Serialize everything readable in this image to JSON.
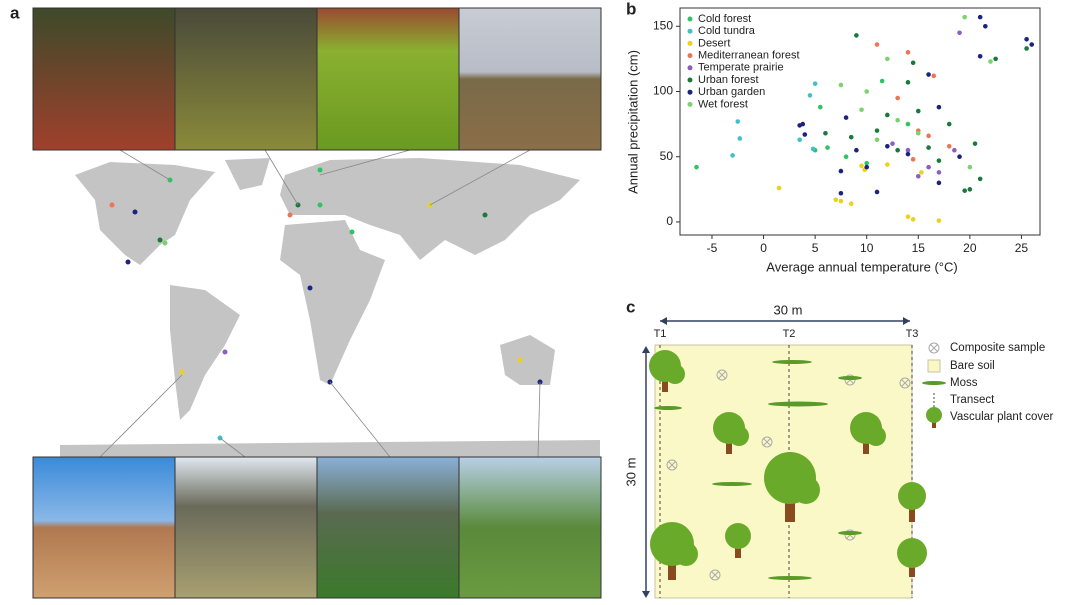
{
  "panel_labels": [
    "a",
    "b",
    "c"
  ],
  "chart_data": {
    "type": "scatter",
    "x_label": "Average annual temperature (°C)",
    "y_label": "Annual precipitation (cm)",
    "xlim": [
      -8.1,
      26.8
    ],
    "ylim": [
      -10,
      164
    ],
    "xticks": [
      -5,
      0,
      5,
      10,
      15,
      20,
      25
    ],
    "yticks": [
      0,
      50,
      100,
      150
    ],
    "legend": "upper left",
    "series": [
      {
        "name": "Cold forest",
        "color": "#2fc463",
        "x": [
          -6.5,
          5,
          5.5,
          8,
          10,
          14,
          6.2,
          11.5
        ],
        "values": [
          42,
          55,
          88,
          50,
          45,
          75,
          57,
          108
        ]
      },
      {
        "name": "Cold tundra",
        "color": "#3fc1c9",
        "x": [
          -3,
          -2.5,
          -2.3,
          4.5,
          5,
          4.8,
          3.5
        ],
        "values": [
          51,
          77,
          64,
          97,
          106,
          56,
          63
        ]
      },
      {
        "name": "Desert",
        "color": "#ecd21c",
        "x": [
          1.5,
          7,
          7.5,
          8.5,
          9.5,
          14,
          14.5,
          17,
          9.8,
          15.3,
          12
        ],
        "values": [
          26,
          17,
          16,
          14,
          43,
          4,
          2,
          1,
          40,
          38,
          44
        ]
      },
      {
        "name": "Mediterranean forest",
        "color": "#ef7454",
        "x": [
          11,
          14,
          16,
          18,
          15,
          13,
          16.5,
          14.5
        ],
        "values": [
          136,
          130,
          66,
          58,
          70,
          95,
          112,
          48
        ]
      },
      {
        "name": "Temperate prairie",
        "color": "#8a5fc0",
        "x": [
          19,
          15,
          16,
          17,
          18.5,
          14,
          12.5
        ],
        "values": [
          145,
          35,
          42,
          38,
          55,
          55,
          60
        ]
      },
      {
        "name": "Urban forest",
        "color": "#1a7a3a",
        "x": [
          9,
          14,
          14.5,
          19.5,
          20,
          21,
          22.5,
          25.5,
          11,
          12,
          13,
          16,
          17,
          15,
          18,
          20.5,
          8.5,
          6
        ],
        "values": [
          143,
          107,
          122,
          24,
          25,
          33,
          125,
          133,
          70,
          82,
          55,
          57,
          47,
          85,
          75,
          60,
          65,
          68
        ]
      },
      {
        "name": "Urban garden",
        "color": "#1a237e",
        "x": [
          3.5,
          4,
          8,
          9,
          10,
          11,
          12,
          14,
          16,
          17,
          17,
          19,
          21,
          21.5,
          21,
          25.5,
          26,
          3.8,
          7.5,
          7.5
        ],
        "values": [
          74,
          67,
          80,
          55,
          42,
          23,
          58,
          52,
          113,
          88,
          30,
          50,
          157,
          150,
          127,
          140,
          136,
          75,
          39,
          22
        ]
      },
      {
        "name": "Wet forest",
        "color": "#7ad36c",
        "x": [
          19.5,
          22,
          12,
          7.5,
          9.5,
          11,
          13,
          20,
          15,
          10
        ],
        "values": [
          157,
          123,
          125,
          105,
          86,
          63,
          78,
          42,
          68,
          100
        ]
      }
    ]
  },
  "diagram": {
    "width_label": "30 m",
    "height_label": "30 m",
    "transects": [
      "T1",
      "T2",
      "T3"
    ],
    "legend": [
      "Composite sample",
      "Bare soil",
      "Moss",
      "Transect",
      "Vascular plant cover"
    ]
  }
}
